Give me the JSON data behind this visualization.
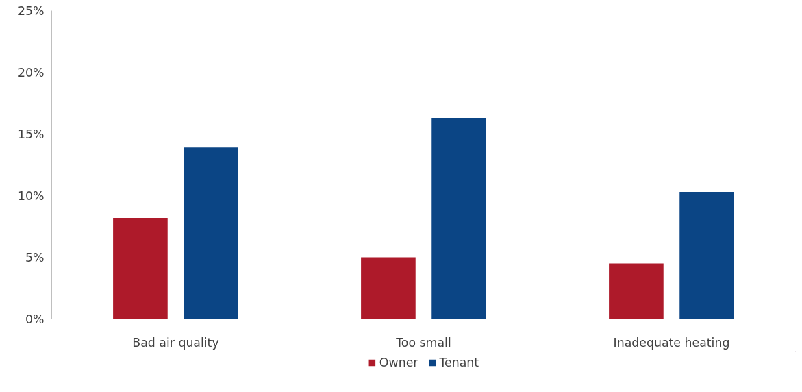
{
  "chart_data": {
    "type": "bar",
    "categories": [
      "Bad air quality",
      "Too small",
      "Inadequate heating"
    ],
    "series": [
      {
        "name": "Owner",
        "color": "#ae1a2a",
        "values": [
          8.2,
          5.0,
          4.5
        ]
      },
      {
        "name": "Tenant",
        "color": "#0b4585",
        "values": [
          13.9,
          16.3,
          10.3
        ]
      }
    ],
    "ylim": [
      0,
      25
    ],
    "yticks": [
      {
        "value": 0,
        "label": "0%"
      },
      {
        "value": 5,
        "label": "5%"
      },
      {
        "value": 10,
        "label": "10%"
      },
      {
        "value": 15,
        "label": "15%"
      },
      {
        "value": 20,
        "label": "20%"
      },
      {
        "value": 25,
        "label": "25%"
      }
    ],
    "grid": false,
    "legend": "bottom"
  }
}
